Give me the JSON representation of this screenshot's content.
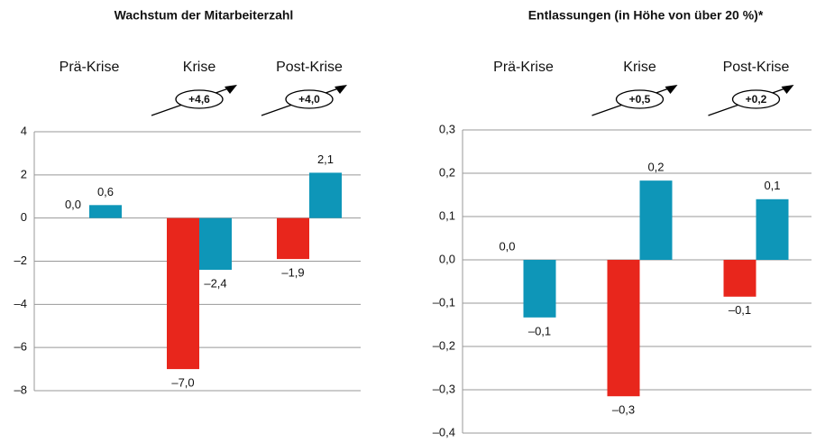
{
  "chart_data": [
    {
      "type": "bar",
      "title": "Wachstum der Mitarbeiterzahl",
      "categories": [
        "Prä-Krise",
        "Krise",
        "Post-Krise"
      ],
      "series": [
        {
          "color": "#e8261c",
          "values": [
            0.0,
            -7.0,
            -1.9
          ],
          "value_labels": [
            "0,0",
            "–7,0",
            "–1,9"
          ]
        },
        {
          "color": "#0e96b8",
          "values": [
            0.6,
            -2.4,
            2.1
          ],
          "value_labels": [
            "0,6",
            "–2,4",
            "2,1"
          ]
        }
      ],
      "annotations": [
        {
          "category": "Krise",
          "text": "+4,6"
        },
        {
          "category": "Post-Krise",
          "text": "+4,0"
        }
      ],
      "ylim": [
        -8,
        4
      ],
      "yticks": [
        4,
        2,
        0,
        {
          "value": -2,
          "label": "–2"
        },
        {
          "value": -4,
          "label": "–4"
        },
        {
          "value": -6,
          "label": "–6"
        },
        {
          "value": -8,
          "label": "–8"
        }
      ],
      "grid": true
    },
    {
      "type": "bar",
      "title": "Entlassungen (in Höhe von über 20 %)*",
      "categories": [
        "Prä-Krise",
        "Krise",
        "Post-Krise"
      ],
      "series": [
        {
          "color": "#e8261c",
          "values": [
            0.0,
            -0.315,
            -0.085
          ],
          "value_labels": [
            "0,0",
            "–0,3",
            "–0,1"
          ]
        },
        {
          "color": "#0e96b8",
          "values": [
            -0.133,
            0.183,
            0.14
          ],
          "value_labels": [
            "–0,1",
            "0,2",
            "0,1"
          ]
        }
      ],
      "annotations": [
        {
          "category": "Krise",
          "text": "+0,5"
        },
        {
          "category": "Post-Krise",
          "text": "+0,2"
        }
      ],
      "ylim": [
        -0.4,
        0.3
      ],
      "yticks": [
        {
          "value": 0.3,
          "label": "0,3"
        },
        {
          "value": 0.2,
          "label": "0,2"
        },
        {
          "value": 0.1,
          "label": "0,1"
        },
        {
          "value": 0,
          "label": "0,0"
        },
        {
          "value": -0.1,
          "label": "–0,1"
        },
        {
          "value": -0.2,
          "label": "–0,2"
        },
        {
          "value": -0.3,
          "label": "–0,3"
        },
        {
          "value": -0.4,
          "label": "–0,4"
        }
      ],
      "grid": true
    }
  ]
}
